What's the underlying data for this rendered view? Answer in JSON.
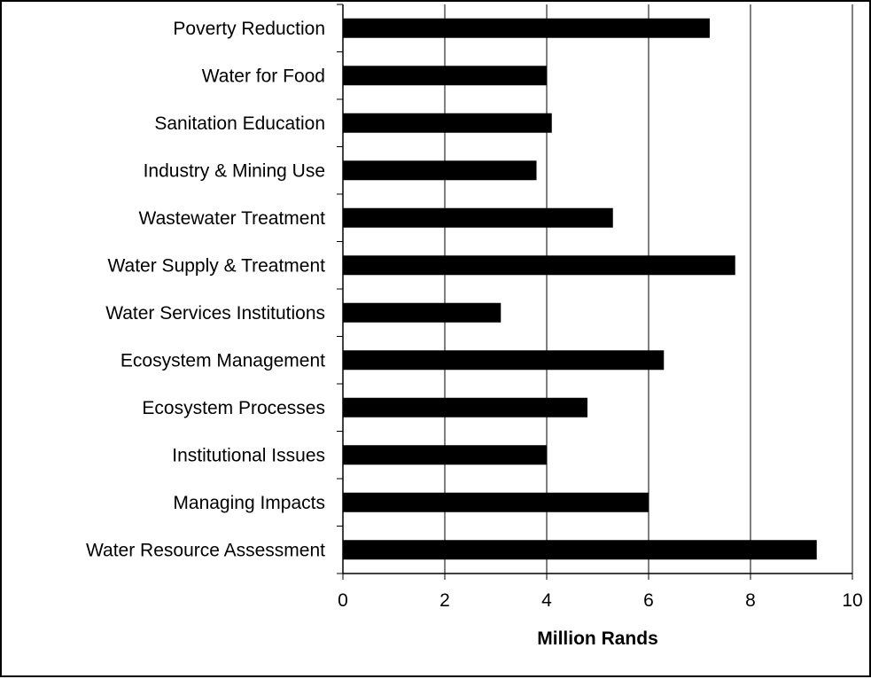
{
  "chart_data": {
    "type": "bar",
    "orientation": "horizontal",
    "categories": [
      "Water Resource Assessment",
      "Managing Impacts",
      "Institutional Issues",
      "Ecosystem Processes",
      "Ecosystem Management",
      "Water Services Institutions",
      "Water Supply & Treatment",
      "Wastewater Treatment",
      "Industry & Mining Use",
      "Sanitation Education",
      "Water for Food",
      "Poverty Reduction"
    ],
    "values": [
      9.3,
      6.0,
      4.0,
      4.8,
      6.3,
      3.1,
      7.7,
      5.3,
      3.8,
      4.1,
      4.0,
      7.2
    ],
    "title": "",
    "xlabel": "Million Rands",
    "ylabel": "",
    "xlim": [
      0,
      10
    ],
    "xticks": [
      0,
      2,
      4,
      6,
      8,
      10
    ],
    "grid": "vertical",
    "legend": "none",
    "colors": {
      "bar": "#000000",
      "gridline": "#000000",
      "frame": "#000000",
      "background": "#ffffff"
    }
  }
}
